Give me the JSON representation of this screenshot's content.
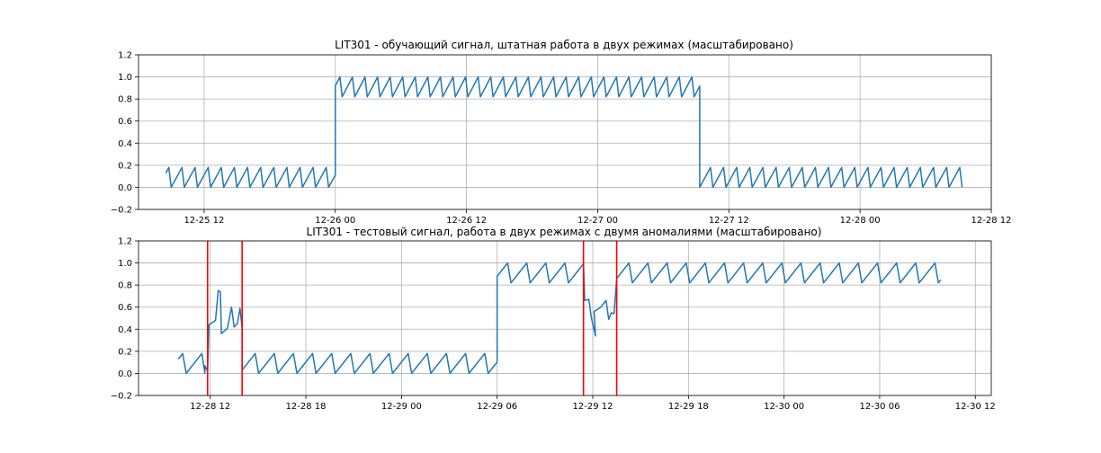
{
  "chart_data": [
    {
      "type": "line",
      "title": "LIT301 - обучающий сигнал, штатная работа в двух режимах (масштабировано)",
      "xlabel": "",
      "ylabel": "",
      "xlim": [
        "2015-12-25T06:00",
        "2015-12-28T12:00"
      ],
      "ylim": [
        -0.2,
        1.2
      ],
      "x_ticks": [
        "12-25 12",
        "12-26 00",
        "12-26 12",
        "12-27 00",
        "12-27 12",
        "12-28 00",
        "12-28 12"
      ],
      "y_ticks": [
        "−0.2",
        "0.0",
        "0.2",
        "0.4",
        "0.6",
        "0.8",
        "1.0",
        "1.2"
      ],
      "grid": true,
      "series": [
        {
          "color": "#1f77b4",
          "segments": [
            {
              "start": "2015-12-25T08:30",
              "end": "2015-12-26T00:00",
              "low": 0.0,
              "high": 0.18,
              "period_hours": 1.2,
              "start_level": 0.13
            },
            {
              "start": "2015-12-26T00:00",
              "end": "2015-12-27T09:20",
              "low": 0.82,
              "high": 1.0,
              "period_hours": 1.15,
              "start_level": 0.92
            },
            {
              "start": "2015-12-27T09:20",
              "end": "2015-12-28T09:20",
              "low": 0.0,
              "high": 0.18,
              "period_hours": 1.2,
              "start_level": 0.0
            }
          ]
        }
      ]
    },
    {
      "type": "line",
      "title": "LIT301 - тестовый сигнал, работа в двух режимах с двумя аномалиями (масштабировано)",
      "xlabel": "",
      "ylabel": "",
      "xlim": [
        "2015-12-28T07:30",
        "2015-12-30T13:00"
      ],
      "ylim": [
        -0.2,
        1.2
      ],
      "x_ticks": [
        "12-28 12",
        "12-28 18",
        "12-29 00",
        "12-29 06",
        "12-29 12",
        "12-29 18",
        "12-30 00",
        "12-30 06",
        "12-30 12"
      ],
      "y_ticks": [
        "−0.2",
        "0.0",
        "0.2",
        "0.4",
        "0.6",
        "0.8",
        "1.0",
        "1.2"
      ],
      "grid": true,
      "anomaly_lines": [
        "2015-12-28T11:50",
        "2015-12-28T14:00",
        "2015-12-29T11:25",
        "2015-12-29T13:30"
      ],
      "anomaly_color": "#ff0000",
      "series": [
        {
          "color": "#1f77b4",
          "segments": [
            {
              "start": "2015-12-28T10:00",
              "end": "2015-12-28T11:40",
              "low": 0.0,
              "high": 0.18,
              "period_hours": 1.2,
              "start_level": 0.13
            },
            {
              "start": "2015-12-28T14:00",
              "end": "2015-12-29T06:00",
              "low": 0.0,
              "high": 0.18,
              "period_hours": 1.2,
              "start_level": 0.03
            },
            {
              "start": "2015-12-29T06:00",
              "end": "2015-12-29T11:25",
              "low": 0.82,
              "high": 1.0,
              "period_hours": 1.2,
              "start_level": 0.88
            },
            {
              "start": "2015-12-29T13:30",
              "end": "2015-12-30T09:50",
              "low": 0.82,
              "high": 1.0,
              "period_hours": 1.2,
              "start_level": 0.86
            }
          ],
          "anomaly_points": [
            {
              "t": "2015-12-28T11:40",
              "y": 0.07
            },
            {
              "t": "2015-12-28T11:50",
              "y": 0.02
            },
            {
              "t": "2015-12-28T11:55",
              "y": 0.44
            },
            {
              "t": "2015-12-28T12:20",
              "y": 0.48
            },
            {
              "t": "2015-12-28T12:30",
              "y": 0.75
            },
            {
              "t": "2015-12-28T12:38",
              "y": 0.74
            },
            {
              "t": "2015-12-28T12:42",
              "y": 0.36
            },
            {
              "t": "2015-12-28T13:05",
              "y": 0.41
            },
            {
              "t": "2015-12-28T13:20",
              "y": 0.6
            },
            {
              "t": "2015-12-28T13:30",
              "y": 0.42
            },
            {
              "t": "2015-12-28T13:42",
              "y": 0.45
            },
            {
              "t": "2015-12-28T13:52",
              "y": 0.59
            },
            {
              "t": "2015-12-28T14:00",
              "y": 0.41
            },
            {
              "t": "2015-12-28T14:00",
              "y": 0.03
            },
            {
              "t": "2015-12-29T11:25",
              "y": 0.99
            },
            {
              "t": "2015-12-29T11:30",
              "y": 0.66
            },
            {
              "t": "2015-12-29T11:45",
              "y": 0.67
            },
            {
              "t": "2015-12-29T11:55",
              "y": 0.5
            },
            {
              "t": "2015-12-29T12:10",
              "y": 0.34
            },
            {
              "t": "2015-12-29T12:05",
              "y": 0.56
            },
            {
              "t": "2015-12-29T12:30",
              "y": 0.6
            },
            {
              "t": "2015-12-29T12:50",
              "y": 0.66
            },
            {
              "t": "2015-12-29T13:00",
              "y": 0.49
            },
            {
              "t": "2015-12-29T13:10",
              "y": 0.55
            },
            {
              "t": "2015-12-29T13:20",
              "y": 0.54
            },
            {
              "t": "2015-12-29T13:30",
              "y": 0.86
            }
          ]
        }
      ]
    }
  ]
}
